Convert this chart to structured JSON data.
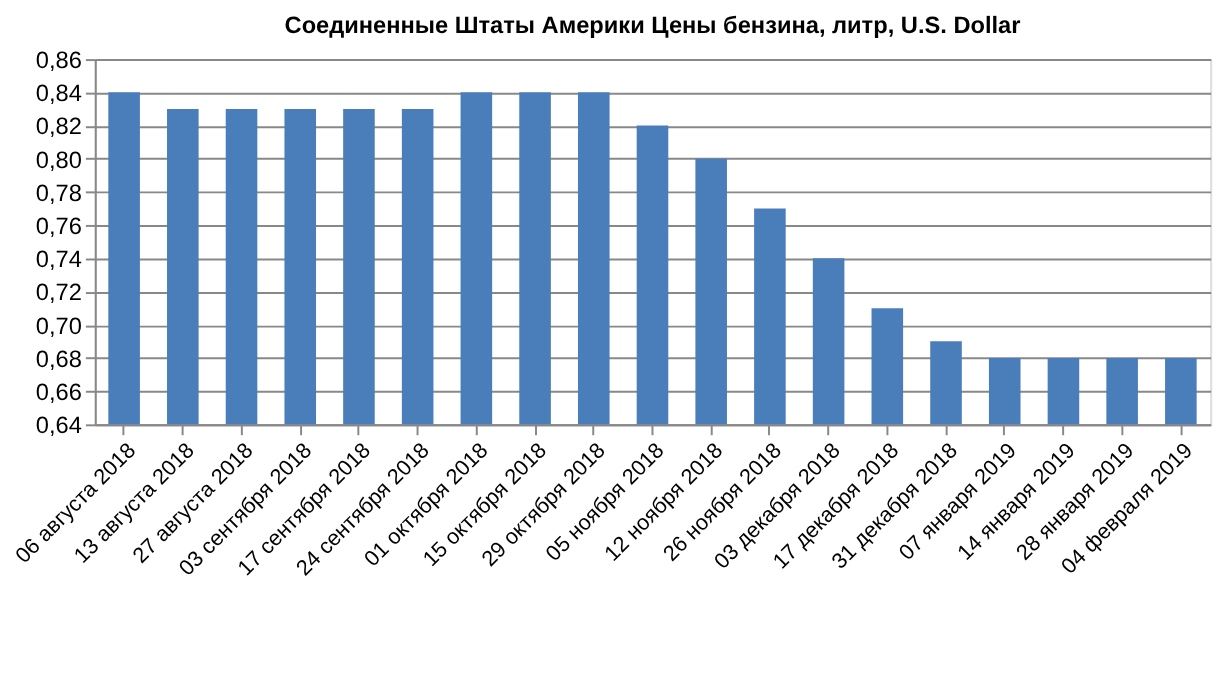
{
  "chart_data": {
    "type": "bar",
    "title": "Соединенные Штаты Америки Цены бензина, литр, U.S. Dollar",
    "categories": [
      "06 августа 2018",
      "13 августа 2018",
      "27 августа 2018",
      "03 сентября 2018",
      "17 сентября 2018",
      "24 сентября 2018",
      "01 октября 2018",
      "15 октября 2018",
      "29 октября 2018",
      "05 ноября 2018",
      "12 ноября 2018",
      "26 ноября 2018",
      "03 декабря 2018",
      "17 декабря 2018",
      "31 декабря 2018",
      "07 января 2019",
      "14 января 2019",
      "28 января 2019",
      "04 февраля 2019"
    ],
    "values": [
      0.84,
      0.83,
      0.83,
      0.83,
      0.83,
      0.83,
      0.84,
      0.84,
      0.84,
      0.82,
      0.8,
      0.77,
      0.74,
      0.71,
      0.69,
      0.68,
      0.68,
      0.68,
      0.68
    ],
    "color": "#4a7ebb",
    "ylim": [
      0.64,
      0.86
    ],
    "yticks": [
      {
        "value": 0.64,
        "label": "0,64"
      },
      {
        "value": 0.66,
        "label": "0,66"
      },
      {
        "value": 0.68,
        "label": "0,68"
      },
      {
        "value": 0.7,
        "label": "0,70"
      },
      {
        "value": 0.72,
        "label": "0,72"
      },
      {
        "value": 0.74,
        "label": "0,74"
      },
      {
        "value": 0.76,
        "label": "0,76"
      },
      {
        "value": 0.78,
        "label": "0,78"
      },
      {
        "value": 0.8,
        "label": "0,80"
      },
      {
        "value": 0.82,
        "label": "0,82"
      },
      {
        "value": 0.84,
        "label": "0,84"
      },
      {
        "value": 0.86,
        "label": "0,86"
      }
    ],
    "grid": "y"
  }
}
